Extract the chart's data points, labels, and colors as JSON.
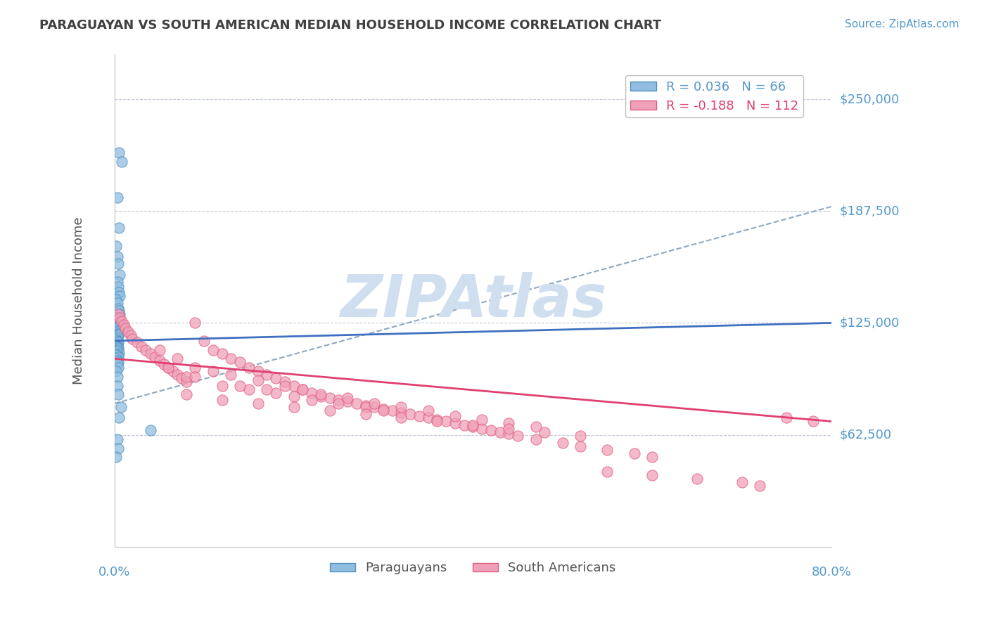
{
  "title": "PARAGUAYAN VS SOUTH AMERICAN MEDIAN HOUSEHOLD INCOME CORRELATION CHART",
  "source": "Source: ZipAtlas.com",
  "ylabel": "Median Household Income",
  "xlabel": "",
  "xlim": [
    0.0,
    0.8
  ],
  "ylim": [
    0,
    275000
  ],
  "yticks": [
    0,
    62500,
    125000,
    187500,
    250000
  ],
  "ytick_labels": [
    "",
    "$62,500",
    "$125,000",
    "$187,500",
    "$250,000"
  ],
  "xticks": [
    0.0,
    0.8
  ],
  "xtick_labels": [
    "0.0%",
    "80.0%"
  ],
  "legend_items": [
    {
      "label": "R = 0.036   N = 66",
      "color": "#a8c4e0"
    },
    {
      "label": "R = -0.188   N = 112",
      "color": "#f4a0b0"
    }
  ],
  "blue_scatter_x": [
    0.005,
    0.008,
    0.003,
    0.005,
    0.002,
    0.003,
    0.004,
    0.006,
    0.003,
    0.004,
    0.005,
    0.006,
    0.002,
    0.003,
    0.004,
    0.005,
    0.006,
    0.003,
    0.002,
    0.004,
    0.005,
    0.006,
    0.003,
    0.002,
    0.004,
    0.002,
    0.003,
    0.004,
    0.003,
    0.005,
    0.004,
    0.003,
    0.005,
    0.004,
    0.003,
    0.002,
    0.003,
    0.002,
    0.004,
    0.003,
    0.003,
    0.002,
    0.004,
    0.003,
    0.002,
    0.004,
    0.003,
    0.005,
    0.003,
    0.002,
    0.004,
    0.002,
    0.003,
    0.004,
    0.003,
    0.004,
    0.002,
    0.003,
    0.003,
    0.004,
    0.007,
    0.005,
    0.04,
    0.003,
    0.004,
    0.002
  ],
  "blue_scatter_y": [
    220000,
    215000,
    195000,
    178000,
    168000,
    162000,
    158000,
    152000,
    148000,
    145000,
    142000,
    140000,
    138000,
    136000,
    133000,
    132000,
    130000,
    128000,
    128000,
    127000,
    126000,
    125000,
    125000,
    124000,
    123000,
    122000,
    122000,
    121000,
    121000,
    120000,
    120000,
    119000,
    119000,
    118000,
    117000,
    116000,
    115000,
    115000,
    114000,
    113000,
    112000,
    112000,
    111000,
    111000,
    110000,
    110000,
    109000,
    108000,
    107000,
    107000,
    106000,
    105000,
    104000,
    103000,
    102000,
    100000,
    98000,
    95000,
    90000,
    85000,
    78000,
    72000,
    65000,
    60000,
    55000,
    50000
  ],
  "pink_scatter_x": [
    0.004,
    0.006,
    0.008,
    0.01,
    0.012,
    0.015,
    0.018,
    0.02,
    0.025,
    0.03,
    0.035,
    0.04,
    0.045,
    0.05,
    0.055,
    0.06,
    0.065,
    0.07,
    0.075,
    0.08,
    0.09,
    0.1,
    0.11,
    0.12,
    0.13,
    0.14,
    0.15,
    0.16,
    0.17,
    0.18,
    0.19,
    0.2,
    0.21,
    0.22,
    0.23,
    0.24,
    0.25,
    0.26,
    0.27,
    0.28,
    0.29,
    0.3,
    0.31,
    0.32,
    0.33,
    0.34,
    0.35,
    0.36,
    0.37,
    0.38,
    0.39,
    0.4,
    0.41,
    0.42,
    0.43,
    0.44,
    0.45,
    0.47,
    0.5,
    0.52,
    0.55,
    0.58,
    0.6,
    0.08,
    0.12,
    0.15,
    0.18,
    0.2,
    0.22,
    0.25,
    0.28,
    0.3,
    0.05,
    0.07,
    0.09,
    0.11,
    0.13,
    0.16,
    0.19,
    0.21,
    0.06,
    0.09,
    0.14,
    0.17,
    0.23,
    0.26,
    0.29,
    0.32,
    0.35,
    0.38,
    0.41,
    0.44,
    0.47,
    0.08,
    0.12,
    0.16,
    0.2,
    0.24,
    0.28,
    0.32,
    0.36,
    0.4,
    0.44,
    0.48,
    0.52,
    0.55,
    0.6,
    0.65,
    0.7,
    0.72,
    0.75,
    0.78
  ],
  "pink_scatter_y": [
    130000,
    128000,
    126000,
    124000,
    122000,
    120000,
    118000,
    116000,
    114000,
    112000,
    110000,
    108000,
    106000,
    104000,
    102000,
    100000,
    98000,
    96000,
    94000,
    92000,
    125000,
    115000,
    110000,
    108000,
    105000,
    103000,
    100000,
    98000,
    96000,
    94000,
    92000,
    90000,
    88000,
    86000,
    84000,
    83000,
    82000,
    81000,
    80000,
    79000,
    78000,
    77000,
    76000,
    75000,
    74000,
    73000,
    72000,
    71000,
    70000,
    69000,
    68000,
    67000,
    66000,
    65000,
    64000,
    63000,
    62000,
    60000,
    58000,
    56000,
    54000,
    52000,
    50000,
    95000,
    90000,
    88000,
    86000,
    84000,
    82000,
    80000,
    78000,
    76000,
    110000,
    105000,
    100000,
    98000,
    96000,
    93000,
    90000,
    88000,
    100000,
    95000,
    90000,
    88000,
    85000,
    83000,
    80000,
    78000,
    76000,
    73000,
    71000,
    69000,
    67000,
    85000,
    82000,
    80000,
    78000,
    76000,
    74000,
    72000,
    70000,
    68000,
    66000,
    64000,
    62000,
    42000,
    40000,
    38000,
    36000,
    34000,
    72000,
    70000
  ],
  "blue_line_x": [
    0.0,
    0.8
  ],
  "blue_line_y": [
    115000,
    125000
  ],
  "pink_line_x": [
    0.0,
    0.8
  ],
  "pink_line_y": [
    105000,
    70000
  ],
  "diagonal_line_x": [
    0.0,
    0.8
  ],
  "diagonal_line_y": [
    80000,
    190000
  ],
  "watermark": "ZIPAtlas",
  "watermark_color": "#d0dff0",
  "scatter_size": 120,
  "blue_color": "#90bde0",
  "pink_color": "#f0a0b8",
  "blue_edge_color": "#5090c0",
  "pink_edge_color": "#e06080",
  "title_color": "#404040",
  "axis_label_color": "#5599cc",
  "grid_color": "#c0c8d8",
  "background_color": "#ffffff"
}
